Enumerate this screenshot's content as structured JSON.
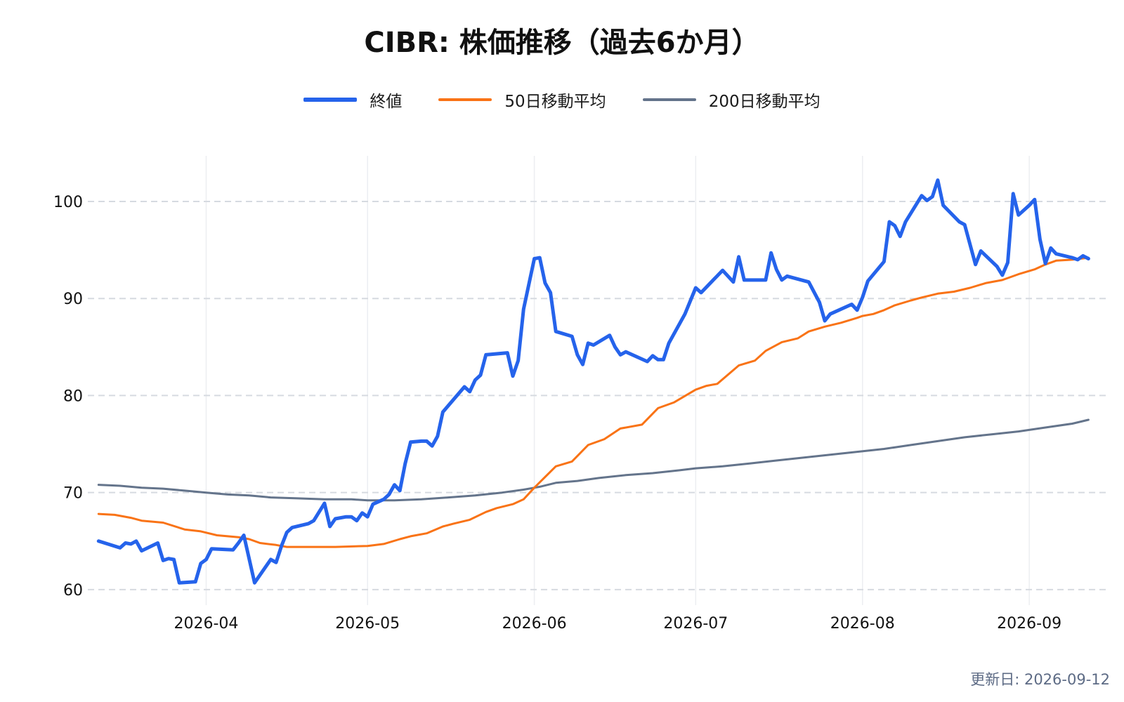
{
  "chart_data": {
    "type": "line",
    "title": "CIBR: 株価推移（過去6か月）",
    "xlabel": "",
    "ylabel": "",
    "ylim": [
      58.4,
      104.7
    ],
    "xlim": [
      "2026-03-10",
      "2026-09-16"
    ],
    "yticks": [
      60,
      70,
      80,
      90,
      100
    ],
    "xticks": [
      "2026-04-01",
      "2026-05-01",
      "2026-06-01",
      "2026-07-01",
      "2026-08-01",
      "2026-09-01"
    ],
    "xtick_labels": [
      "2026-04",
      "2026-05",
      "2026-06",
      "2026-07",
      "2026-08",
      "2026-09"
    ],
    "grid": "dashed horizontal, light vertical",
    "legend_position": "top-center",
    "series": [
      {
        "name": "終値",
        "color": "#2563eb",
        "width": 5,
        "points": [
          [
            "2026-03-12",
            65.0
          ],
          [
            "2026-03-16",
            64.3
          ],
          [
            "2026-03-17",
            64.8
          ],
          [
            "2026-03-18",
            64.7
          ],
          [
            "2026-03-19",
            65.0
          ],
          [
            "2026-03-20",
            64.0
          ],
          [
            "2026-03-23",
            64.8
          ],
          [
            "2026-03-24",
            63.0
          ],
          [
            "2026-03-25",
            63.2
          ],
          [
            "2026-03-26",
            63.1
          ],
          [
            "2026-03-27",
            60.7
          ],
          [
            "2026-03-30",
            60.8
          ],
          [
            "2026-03-31",
            62.7
          ],
          [
            "2026-04-01",
            63.1
          ],
          [
            "2026-04-02",
            64.2
          ],
          [
            "2026-04-06",
            64.1
          ],
          [
            "2026-04-07",
            64.8
          ],
          [
            "2026-04-08",
            65.6
          ],
          [
            "2026-04-10",
            60.7
          ],
          [
            "2026-04-13",
            63.1
          ],
          [
            "2026-04-14",
            62.8
          ],
          [
            "2026-04-15",
            64.5
          ],
          [
            "2026-04-16",
            65.9
          ],
          [
            "2026-04-17",
            66.4
          ],
          [
            "2026-04-20",
            66.8
          ],
          [
            "2026-04-21",
            67.1
          ],
          [
            "2026-04-23",
            68.9
          ],
          [
            "2026-04-24",
            66.5
          ],
          [
            "2026-04-25",
            67.3
          ],
          [
            "2026-04-27",
            67.5
          ],
          [
            "2026-04-28",
            67.5
          ],
          [
            "2026-04-29",
            67.1
          ],
          [
            "2026-04-30",
            67.9
          ],
          [
            "2026-05-01",
            67.5
          ],
          [
            "2026-05-02",
            68.8
          ],
          [
            "2026-05-04",
            69.3
          ],
          [
            "2026-05-05",
            69.8
          ],
          [
            "2026-05-06",
            70.8
          ],
          [
            "2026-05-07",
            70.2
          ],
          [
            "2026-05-08",
            73.0
          ],
          [
            "2026-05-09",
            75.2
          ],
          [
            "2026-05-11",
            75.3
          ],
          [
            "2026-05-12",
            75.3
          ],
          [
            "2026-05-13",
            74.8
          ],
          [
            "2026-05-14",
            75.8
          ],
          [
            "2026-05-15",
            78.3
          ],
          [
            "2026-05-19",
            80.9
          ],
          [
            "2026-05-20",
            80.4
          ],
          [
            "2026-05-21",
            81.6
          ],
          [
            "2026-05-22",
            82.1
          ],
          [
            "2026-05-23",
            84.2
          ],
          [
            "2026-05-27",
            84.4
          ],
          [
            "2026-05-28",
            82.0
          ],
          [
            "2026-05-29",
            83.6
          ],
          [
            "2026-05-30",
            88.9
          ],
          [
            "2026-06-01",
            94.1
          ],
          [
            "2026-06-02",
            94.2
          ],
          [
            "2026-06-03",
            91.6
          ],
          [
            "2026-06-04",
            90.6
          ],
          [
            "2026-06-05",
            86.6
          ],
          [
            "2026-06-08",
            86.1
          ],
          [
            "2026-06-09",
            84.2
          ],
          [
            "2026-06-10",
            83.2
          ],
          [
            "2026-06-11",
            85.4
          ],
          [
            "2026-06-12",
            85.2
          ],
          [
            "2026-06-15",
            86.2
          ],
          [
            "2026-06-16",
            85.0
          ],
          [
            "2026-06-17",
            84.2
          ],
          [
            "2026-06-18",
            84.5
          ],
          [
            "2026-06-22",
            83.5
          ],
          [
            "2026-06-23",
            84.1
          ],
          [
            "2026-06-24",
            83.7
          ],
          [
            "2026-06-25",
            83.7
          ],
          [
            "2026-06-26",
            85.4
          ],
          [
            "2026-06-29",
            88.4
          ],
          [
            "2026-07-01",
            91.1
          ],
          [
            "2026-07-02",
            90.6
          ],
          [
            "2026-07-06",
            92.9
          ],
          [
            "2026-07-08",
            91.7
          ],
          [
            "2026-07-09",
            94.3
          ],
          [
            "2026-07-10",
            91.9
          ],
          [
            "2026-07-14",
            91.9
          ],
          [
            "2026-07-15",
            94.7
          ],
          [
            "2026-07-16",
            93.0
          ],
          [
            "2026-07-17",
            91.9
          ],
          [
            "2026-07-18",
            92.3
          ],
          [
            "2026-07-22",
            91.7
          ],
          [
            "2026-07-24",
            89.6
          ],
          [
            "2026-07-25",
            87.7
          ],
          [
            "2026-07-26",
            88.4
          ],
          [
            "2026-07-30",
            89.4
          ],
          [
            "2026-07-31",
            88.8
          ],
          [
            "2026-08-01",
            90.1
          ],
          [
            "2026-08-02",
            91.8
          ],
          [
            "2026-08-05",
            93.8
          ],
          [
            "2026-08-06",
            97.9
          ],
          [
            "2026-08-07",
            97.5
          ],
          [
            "2026-08-08",
            96.4
          ],
          [
            "2026-08-09",
            97.9
          ],
          [
            "2026-08-12",
            100.6
          ],
          [
            "2026-08-13",
            100.1
          ],
          [
            "2026-08-14",
            100.5
          ],
          [
            "2026-08-15",
            102.2
          ],
          [
            "2026-08-16",
            99.6
          ],
          [
            "2026-08-19",
            97.9
          ],
          [
            "2026-08-20",
            97.6
          ],
          [
            "2026-08-22",
            93.5
          ],
          [
            "2026-08-23",
            94.9
          ],
          [
            "2026-08-26",
            93.3
          ],
          [
            "2026-08-27",
            92.4
          ],
          [
            "2026-08-28",
            93.7
          ],
          [
            "2026-08-29",
            100.8
          ],
          [
            "2026-08-30",
            98.6
          ],
          [
            "2026-09-01",
            99.6
          ],
          [
            "2026-09-02",
            100.2
          ],
          [
            "2026-09-03",
            96.1
          ],
          [
            "2026-09-04",
            93.6
          ],
          [
            "2026-09-05",
            95.2
          ],
          [
            "2026-09-06",
            94.6
          ],
          [
            "2026-09-09",
            94.2
          ],
          [
            "2026-09-10",
            94.0
          ],
          [
            "2026-09-11",
            94.4
          ],
          [
            "2026-09-12",
            94.1
          ]
        ]
      },
      {
        "name": "50日移動平均",
        "color": "#f97316",
        "width": 3,
        "points": [
          [
            "2026-03-12",
            67.8
          ],
          [
            "2026-03-15",
            67.7
          ],
          [
            "2026-03-18",
            67.4
          ],
          [
            "2026-03-20",
            67.1
          ],
          [
            "2026-03-24",
            66.9
          ],
          [
            "2026-03-28",
            66.2
          ],
          [
            "2026-03-31",
            66.0
          ],
          [
            "2026-04-03",
            65.6
          ],
          [
            "2026-04-07",
            65.4
          ],
          [
            "2026-04-09",
            65.2
          ],
          [
            "2026-04-11",
            64.8
          ],
          [
            "2026-04-14",
            64.6
          ],
          [
            "2026-04-16",
            64.4
          ],
          [
            "2026-04-20",
            64.4
          ],
          [
            "2026-04-25",
            64.4
          ],
          [
            "2026-05-01",
            64.5
          ],
          [
            "2026-05-04",
            64.7
          ],
          [
            "2026-05-07",
            65.2
          ],
          [
            "2026-05-09",
            65.5
          ],
          [
            "2026-05-12",
            65.8
          ],
          [
            "2026-05-15",
            66.5
          ],
          [
            "2026-05-17",
            66.8
          ],
          [
            "2026-05-20",
            67.2
          ],
          [
            "2026-05-23",
            68.0
          ],
          [
            "2026-05-25",
            68.4
          ],
          [
            "2026-05-28",
            68.8
          ],
          [
            "2026-05-30",
            69.3
          ],
          [
            "2026-06-01",
            70.5
          ],
          [
            "2026-06-03",
            71.6
          ],
          [
            "2026-06-05",
            72.7
          ],
          [
            "2026-06-08",
            73.2
          ],
          [
            "2026-06-11",
            74.9
          ],
          [
            "2026-06-14",
            75.5
          ],
          [
            "2026-06-17",
            76.6
          ],
          [
            "2026-06-21",
            77.0
          ],
          [
            "2026-06-24",
            78.7
          ],
          [
            "2026-06-27",
            79.3
          ],
          [
            "2026-07-01",
            80.6
          ],
          [
            "2026-07-03",
            81.0
          ],
          [
            "2026-07-05",
            81.2
          ],
          [
            "2026-07-09",
            83.1
          ],
          [
            "2026-07-12",
            83.6
          ],
          [
            "2026-07-14",
            84.6
          ],
          [
            "2026-07-17",
            85.5
          ],
          [
            "2026-07-20",
            85.9
          ],
          [
            "2026-07-22",
            86.6
          ],
          [
            "2026-07-25",
            87.1
          ],
          [
            "2026-07-28",
            87.5
          ],
          [
            "2026-07-31",
            88.0
          ],
          [
            "2026-08-01",
            88.2
          ],
          [
            "2026-08-03",
            88.4
          ],
          [
            "2026-08-05",
            88.8
          ],
          [
            "2026-08-07",
            89.3
          ],
          [
            "2026-08-10",
            89.8
          ],
          [
            "2026-08-12",
            90.1
          ],
          [
            "2026-08-15",
            90.5
          ],
          [
            "2026-08-18",
            90.7
          ],
          [
            "2026-08-21",
            91.1
          ],
          [
            "2026-08-24",
            91.6
          ],
          [
            "2026-08-27",
            91.9
          ],
          [
            "2026-08-30",
            92.5
          ],
          [
            "2026-09-02",
            93.0
          ],
          [
            "2026-09-04",
            93.5
          ],
          [
            "2026-09-06",
            93.9
          ],
          [
            "2026-09-09",
            94.0
          ],
          [
            "2026-09-12",
            94.2
          ]
        ]
      },
      {
        "name": "200日移動平均",
        "color": "#64748b",
        "width": 3,
        "points": [
          [
            "2026-03-12",
            70.8
          ],
          [
            "2026-03-16",
            70.7
          ],
          [
            "2026-03-20",
            70.5
          ],
          [
            "2026-03-24",
            70.4
          ],
          [
            "2026-03-28",
            70.2
          ],
          [
            "2026-04-01",
            70.0
          ],
          [
            "2026-04-05",
            69.8
          ],
          [
            "2026-04-09",
            69.7
          ],
          [
            "2026-04-13",
            69.5
          ],
          [
            "2026-04-18",
            69.4
          ],
          [
            "2026-04-23",
            69.3
          ],
          [
            "2026-04-28",
            69.3
          ],
          [
            "2026-05-01",
            69.2
          ],
          [
            "2026-05-06",
            69.2
          ],
          [
            "2026-05-11",
            69.3
          ],
          [
            "2026-05-16",
            69.5
          ],
          [
            "2026-05-21",
            69.7
          ],
          [
            "2026-05-26",
            70.0
          ],
          [
            "2026-05-30",
            70.3
          ],
          [
            "2026-06-02",
            70.6
          ],
          [
            "2026-06-05",
            71.0
          ],
          [
            "2026-06-09",
            71.2
          ],
          [
            "2026-06-13",
            71.5
          ],
          [
            "2026-06-18",
            71.8
          ],
          [
            "2026-06-23",
            72.0
          ],
          [
            "2026-06-28",
            72.3
          ],
          [
            "2026-07-01",
            72.5
          ],
          [
            "2026-07-06",
            72.7
          ],
          [
            "2026-07-11",
            73.0
          ],
          [
            "2026-07-16",
            73.3
          ],
          [
            "2026-07-21",
            73.6
          ],
          [
            "2026-07-26",
            73.9
          ],
          [
            "2026-07-31",
            74.2
          ],
          [
            "2026-08-05",
            74.5
          ],
          [
            "2026-08-10",
            74.9
          ],
          [
            "2026-08-15",
            75.3
          ],
          [
            "2026-08-20",
            75.7
          ],
          [
            "2026-08-25",
            76.0
          ],
          [
            "2026-08-30",
            76.3
          ],
          [
            "2026-09-04",
            76.7
          ],
          [
            "2026-09-09",
            77.1
          ],
          [
            "2026-09-12",
            77.5
          ]
        ]
      }
    ]
  },
  "footer": {
    "updated_label": "更新日: 2026-09-12"
  },
  "colors": {
    "grid": "#d6dae0",
    "footer_text": "#5d6b85"
  }
}
